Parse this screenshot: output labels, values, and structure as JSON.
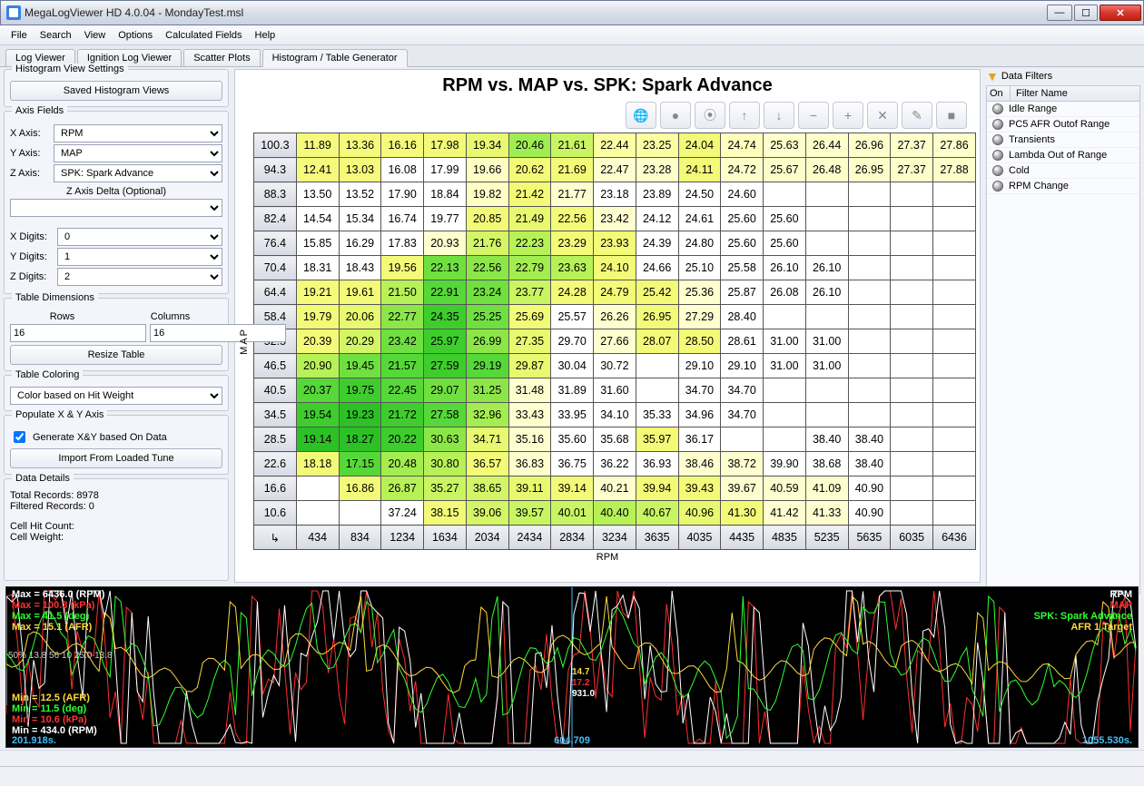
{
  "window": {
    "title": "MegaLogViewer HD 4.0.04 - MondayTest.msl"
  },
  "menu": [
    "File",
    "Search",
    "View",
    "Options",
    "Calculated Fields",
    "Help"
  ],
  "tabs": {
    "items": [
      "Log Viewer",
      "Ignition Log Viewer",
      "Scatter Plots",
      "Histogram / Table Generator"
    ],
    "active_index": 3
  },
  "sidebar": {
    "histogram_settings_title": "Histogram View Settings",
    "saved_views_btn": "Saved Histogram Views",
    "axis_fields_title": "Axis Fields",
    "x_axis_label": "X Axis:",
    "x_axis_value": "RPM",
    "y_axis_label": "Y Axis:",
    "y_axis_value": "MAP",
    "z_axis_label": "Z Axis:",
    "z_axis_value": "SPK: Spark Advance",
    "z_delta_label": "Z Axis Delta (Optional)",
    "z_delta_value": "",
    "x_digits_label": "X Digits:",
    "x_digits_value": "0",
    "y_digits_label": "Y Digits:",
    "y_digits_value": "1",
    "z_digits_label": "Z Digits:",
    "z_digits_value": "2",
    "table_dim_title": "Table Dimensions",
    "rows_label": "Rows",
    "cols_label": "Columns",
    "rows_value": "16",
    "cols_value": "16",
    "resize_btn": "Resize Table",
    "coloring_title": "Table Coloring",
    "coloring_value": "Color based on Hit Weight",
    "populate_title": "Populate X & Y Axis",
    "gen_checkbox_label": "Generate X&Y based On Data",
    "import_btn": "Import From Loaded Tune",
    "details_title": "Data Details",
    "total_records": "Total Records: 8978",
    "filtered_records": "Filtered Records: 0",
    "cell_hit": "Cell Hit Count:",
    "cell_weight": "Cell Weight:"
  },
  "chart": {
    "title": "RPM vs. MAP vs. SPK: Spark Advance",
    "y_axis_label": "MAP",
    "x_axis_label": "RPM",
    "toolbar_icons": [
      "globe-icon",
      "record-icon",
      "layers-icon",
      "arrow-up-icon",
      "arrow-down-icon",
      "minus-icon",
      "plus-icon",
      "close-icon",
      "edit-icon",
      "stop-icon"
    ],
    "y_headers": [
      "100.3",
      "94.3",
      "88.3",
      "82.4",
      "76.4",
      "70.4",
      "64.4",
      "58.4",
      "52.5",
      "46.5",
      "40.5",
      "34.5",
      "28.5",
      "22.6",
      "16.6",
      "10.6"
    ],
    "x_headers": [
      "434",
      "834",
      "1234",
      "1634",
      "2034",
      "2434",
      "2834",
      "3234",
      "3635",
      "4035",
      "4435",
      "4835",
      "5235",
      "5635",
      "6035",
      "6436"
    ],
    "cells": [
      [
        [
          "11.89",
          "#f5fa7c"
        ],
        [
          "13.36",
          "#f5fa7c"
        ],
        [
          "16.16",
          "#f5fa7c"
        ],
        [
          "17.98",
          "#f3fa78"
        ],
        [
          "19.34",
          "#e8f870"
        ],
        [
          "20.46",
          "#9fed52"
        ],
        [
          "21.61",
          "#c9f562"
        ],
        [
          "22.44",
          "#fcfea2"
        ],
        [
          "23.25",
          "#fcfea2"
        ],
        [
          "24.04",
          "#f2fa78"
        ],
        [
          "24.74",
          "#fefebc"
        ],
        [
          "25.63",
          "#fefecb"
        ],
        [
          "26.44",
          "#fefecb"
        ],
        [
          "26.96",
          "#fefecb"
        ],
        [
          "27.37",
          "#fefecb"
        ],
        [
          "27.86",
          "#fefecb"
        ]
      ],
      [
        [
          "12.41",
          "#f5fa7c"
        ],
        [
          "13.03",
          "#f5fa7c"
        ],
        [
          "16.08",
          "#ffffff"
        ],
        [
          "17.99",
          "#ffffff"
        ],
        [
          "19.66",
          "#fefec5"
        ],
        [
          "20.62",
          "#f3fa78"
        ],
        [
          "21.69",
          "#f3fa78"
        ],
        [
          "22.47",
          "#fefecf"
        ],
        [
          "23.28",
          "#fefecb"
        ],
        [
          "24.11",
          "#f2fa78"
        ],
        [
          "24.72",
          "#fefecb"
        ],
        [
          "25.67",
          "#fefecb"
        ],
        [
          "26.48",
          "#fefecb"
        ],
        [
          "26.95",
          "#fefecb"
        ],
        [
          "27.37",
          "#fefecb"
        ],
        [
          "27.88",
          "#fefecb"
        ]
      ],
      [
        [
          "13.50",
          "#ffffff"
        ],
        [
          "13.52",
          "#ffffff"
        ],
        [
          "17.90",
          "#ffffff"
        ],
        [
          "18.84",
          "#ffffff"
        ],
        [
          "19.82",
          "#fefec5"
        ],
        [
          "21.42",
          "#f3fa78"
        ],
        [
          "21.77",
          "#fefecf"
        ],
        [
          "23.18",
          "#ffffff"
        ],
        [
          "23.89",
          "#ffffff"
        ],
        [
          "24.50",
          "#ffffff"
        ],
        [
          "24.60",
          "#ffffff"
        ],
        [
          "",
          "#ffffff"
        ],
        [
          "",
          "#ffffff"
        ],
        [
          "",
          "#ffffff"
        ],
        [
          "",
          "#ffffff"
        ],
        [
          "",
          "#ffffff"
        ]
      ],
      [
        [
          "14.54",
          "#ffffff"
        ],
        [
          "15.34",
          "#ffffff"
        ],
        [
          "16.74",
          "#ffffff"
        ],
        [
          "19.77",
          "#ffffff"
        ],
        [
          "20.85",
          "#f3fa78"
        ],
        [
          "21.49",
          "#e8f870"
        ],
        [
          "22.56",
          "#f3fa78"
        ],
        [
          "23.42",
          "#fefecf"
        ],
        [
          "24.12",
          "#ffffff"
        ],
        [
          "24.61",
          "#ffffff"
        ],
        [
          "25.60",
          "#ffffff"
        ],
        [
          "25.60",
          "#ffffff"
        ],
        [
          "",
          "#ffffff"
        ],
        [
          "",
          "#ffffff"
        ],
        [
          "",
          "#ffffff"
        ],
        [
          "",
          "#ffffff"
        ]
      ],
      [
        [
          "15.85",
          "#ffffff"
        ],
        [
          "16.29",
          "#ffffff"
        ],
        [
          "17.83",
          "#ffffff"
        ],
        [
          "20.93",
          "#fefecf"
        ],
        [
          "21.76",
          "#d4f566"
        ],
        [
          "22.23",
          "#b7f158"
        ],
        [
          "23.29",
          "#f3fa78"
        ],
        [
          "23.93",
          "#f3fa78"
        ],
        [
          "24.39",
          "#ffffff"
        ],
        [
          "24.80",
          "#ffffff"
        ],
        [
          "25.60",
          "#ffffff"
        ],
        [
          "25.60",
          "#ffffff"
        ],
        [
          "",
          "#ffffff"
        ],
        [
          "",
          "#ffffff"
        ],
        [
          "",
          "#ffffff"
        ],
        [
          "",
          "#ffffff"
        ]
      ],
      [
        [
          "18.31",
          "#ffffff"
        ],
        [
          "18.43",
          "#ffffff"
        ],
        [
          "19.56",
          "#f3fa78"
        ],
        [
          "22.13",
          "#6fe040"
        ],
        [
          "22.56",
          "#8ce648"
        ],
        [
          "22.79",
          "#a3ed50"
        ],
        [
          "23.63",
          "#b7f158"
        ],
        [
          "24.10",
          "#f3fa78"
        ],
        [
          "24.66",
          "#ffffff"
        ],
        [
          "25.10",
          "#ffffff"
        ],
        [
          "25.58",
          "#ffffff"
        ],
        [
          "26.10",
          "#ffffff"
        ],
        [
          "26.10",
          "#ffffff"
        ],
        [
          "",
          "#ffffff"
        ],
        [
          "",
          "#ffffff"
        ],
        [
          "",
          "#ffffff"
        ]
      ],
      [
        [
          "19.21",
          "#f5fa7c"
        ],
        [
          "19.61",
          "#f3fa78"
        ],
        [
          "21.50",
          "#b7f158"
        ],
        [
          "22.91",
          "#55d838"
        ],
        [
          "23.24",
          "#6fe040"
        ],
        [
          "23.77",
          "#c9f562"
        ],
        [
          "24.28",
          "#f3fa78"
        ],
        [
          "24.79",
          "#f3fa78"
        ],
        [
          "25.42",
          "#f3fa78"
        ],
        [
          "25.36",
          "#fefecf"
        ],
        [
          "25.87",
          "#ffffff"
        ],
        [
          "26.08",
          "#ffffff"
        ],
        [
          "26.10",
          "#ffffff"
        ],
        [
          "",
          "#ffffff"
        ],
        [
          "",
          "#ffffff"
        ],
        [
          "",
          "#ffffff"
        ]
      ],
      [
        [
          "19.79",
          "#f3fa78"
        ],
        [
          "20.06",
          "#e8f870"
        ],
        [
          "22.77",
          "#8ce648"
        ],
        [
          "24.35",
          "#3ecd2d"
        ],
        [
          "25.25",
          "#6fe040"
        ],
        [
          "25.69",
          "#f3fa78"
        ],
        [
          "25.57",
          "#ffffff"
        ],
        [
          "26.26",
          "#fefecf"
        ],
        [
          "26.95",
          "#f3fa78"
        ],
        [
          "27.29",
          "#fefecf"
        ],
        [
          "28.40",
          "#ffffff"
        ],
        [
          "",
          "#ffffff"
        ],
        [
          "",
          "#ffffff"
        ],
        [
          "",
          "#ffffff"
        ],
        [
          "",
          "#ffffff"
        ],
        [
          "",
          "#ffffff"
        ]
      ],
      [
        [
          "20.39",
          "#f3fa78"
        ],
        [
          "20.29",
          "#d4f566"
        ],
        [
          "23.42",
          "#6fe040"
        ],
        [
          "25.97",
          "#3ecd2d"
        ],
        [
          "26.99",
          "#8ce648"
        ],
        [
          "27.35",
          "#e8f870"
        ],
        [
          "29.70",
          "#ffffff"
        ],
        [
          "27.66",
          "#fefecf"
        ],
        [
          "28.07",
          "#f3fa78"
        ],
        [
          "28.50",
          "#f3fa78"
        ],
        [
          "28.61",
          "#ffffff"
        ],
        [
          "31.00",
          "#ffffff"
        ],
        [
          "31.00",
          "#ffffff"
        ],
        [
          "",
          "#ffffff"
        ],
        [
          "",
          "#ffffff"
        ],
        [
          "",
          "#ffffff"
        ]
      ],
      [
        [
          "20.90",
          "#b7f158"
        ],
        [
          "19.45",
          "#6fe040"
        ],
        [
          "21.57",
          "#55d838"
        ],
        [
          "27.59",
          "#3ecd2d"
        ],
        [
          "29.19",
          "#55d838"
        ],
        [
          "29.87",
          "#e8f870"
        ],
        [
          "30.04",
          "#ffffff"
        ],
        [
          "30.72",
          "#ffffff"
        ],
        [
          "",
          "#ffffff"
        ],
        [
          "29.10",
          "#ffffff"
        ],
        [
          "29.10",
          "#ffffff"
        ],
        [
          "31.00",
          "#ffffff"
        ],
        [
          "31.00",
          "#ffffff"
        ],
        [
          "",
          "#ffffff"
        ],
        [
          "",
          "#ffffff"
        ],
        [
          "",
          "#ffffff"
        ]
      ],
      [
        [
          "20.37",
          "#55d838"
        ],
        [
          "19.75",
          "#3ecd2d"
        ],
        [
          "22.45",
          "#55d838"
        ],
        [
          "29.07",
          "#6fe040"
        ],
        [
          "31.25",
          "#8ce648"
        ],
        [
          "31.48",
          "#fefecf"
        ],
        [
          "31.89",
          "#ffffff"
        ],
        [
          "31.60",
          "#ffffff"
        ],
        [
          "",
          "#ffffff"
        ],
        [
          "34.70",
          "#ffffff"
        ],
        [
          "34.70",
          "#ffffff"
        ],
        [
          "",
          "#ffffff"
        ],
        [
          "",
          "#ffffff"
        ],
        [
          "",
          "#ffffff"
        ],
        [
          "",
          "#ffffff"
        ],
        [
          "",
          "#ffffff"
        ]
      ],
      [
        [
          "19.54",
          "#3ecd2d"
        ],
        [
          "19.23",
          "#2cc125"
        ],
        [
          "21.72",
          "#3ecd2d"
        ],
        [
          "27.58",
          "#55d838"
        ],
        [
          "32.96",
          "#a3ed50"
        ],
        [
          "33.43",
          "#fefecf"
        ],
        [
          "33.95",
          "#ffffff"
        ],
        [
          "34.10",
          "#ffffff"
        ],
        [
          "35.33",
          "#ffffff"
        ],
        [
          "34.96",
          "#ffffff"
        ],
        [
          "34.70",
          "#ffffff"
        ],
        [
          "",
          "#ffffff"
        ],
        [
          "",
          "#ffffff"
        ],
        [
          "",
          "#ffffff"
        ],
        [
          "",
          "#ffffff"
        ],
        [
          "",
          "#ffffff"
        ]
      ],
      [
        [
          "19.14",
          "#2cc125"
        ],
        [
          "18.27",
          "#2cc125"
        ],
        [
          "20.22",
          "#3ecd2d"
        ],
        [
          "30.63",
          "#8ce648"
        ],
        [
          "34.71",
          "#e8f870"
        ],
        [
          "35.16",
          "#fefecf"
        ],
        [
          "35.60",
          "#ffffff"
        ],
        [
          "35.68",
          "#ffffff"
        ],
        [
          "35.97",
          "#f3fa78"
        ],
        [
          "36.17",
          "#ffffff"
        ],
        [
          "",
          "#ffffff"
        ],
        [
          "",
          "#ffffff"
        ],
        [
          "38.40",
          "#ffffff"
        ],
        [
          "38.40",
          "#ffffff"
        ],
        [
          "",
          "#ffffff"
        ],
        [
          "",
          "#ffffff"
        ]
      ],
      [
        [
          "18.18",
          "#f3fa78"
        ],
        [
          "17.15",
          "#55d838"
        ],
        [
          "20.48",
          "#a3ed50"
        ],
        [
          "30.80",
          "#b7f158"
        ],
        [
          "36.57",
          "#f3fa78"
        ],
        [
          "36.83",
          "#fefecf"
        ],
        [
          "36.75",
          "#ffffff"
        ],
        [
          "36.22",
          "#ffffff"
        ],
        [
          "36.93",
          "#ffffff"
        ],
        [
          "38.46",
          "#fefecf"
        ],
        [
          "38.72",
          "#fefecf"
        ],
        [
          "39.90",
          "#ffffff"
        ],
        [
          "38.68",
          "#ffffff"
        ],
        [
          "38.40",
          "#ffffff"
        ],
        [
          "",
          "#ffffff"
        ],
        [
          "",
          "#ffffff"
        ]
      ],
      [
        [
          "",
          "#ffffff"
        ],
        [
          "16.86",
          "#f3fa78"
        ],
        [
          "26.87",
          "#b7f158"
        ],
        [
          "35.27",
          "#c9f562"
        ],
        [
          "38.65",
          "#d4f566"
        ],
        [
          "39.11",
          "#e8f870"
        ],
        [
          "39.14",
          "#f3fa78"
        ],
        [
          "40.21",
          "#fefecf"
        ],
        [
          "39.94",
          "#f3fa78"
        ],
        [
          "39.43",
          "#f3fa78"
        ],
        [
          "39.67",
          "#fefecf"
        ],
        [
          "40.59",
          "#fefecf"
        ],
        [
          "41.09",
          "#fefecf"
        ],
        [
          "40.90",
          "#ffffff"
        ],
        [
          "",
          "#ffffff"
        ],
        [
          "",
          "#ffffff"
        ]
      ],
      [
        [
          "",
          "#ffffff"
        ],
        [
          "",
          "#ffffff"
        ],
        [
          "37.24",
          "#ffffff"
        ],
        [
          "38.15",
          "#f3fa78"
        ],
        [
          "39.06",
          "#d4f566"
        ],
        [
          "39.57",
          "#c9f562"
        ],
        [
          "40.01",
          "#c9f562"
        ],
        [
          "40.40",
          "#b7f158"
        ],
        [
          "40.67",
          "#c9f562"
        ],
        [
          "40.96",
          "#e8f870"
        ],
        [
          "41.30",
          "#f3fa78"
        ],
        [
          "41.42",
          "#fefecf"
        ],
        [
          "41.33",
          "#fefecf"
        ],
        [
          "40.90",
          "#ffffff"
        ],
        [
          "",
          "#ffffff"
        ],
        [
          "",
          "#ffffff"
        ]
      ]
    ]
  },
  "filters": {
    "title": "Data Filters",
    "col_on": "On",
    "col_name": "Filter Name",
    "items": [
      "Idle Range",
      "PC5 AFR Outof Range",
      "Transients",
      "Lambda Out of Range",
      "Cold",
      "RPM Change"
    ]
  },
  "graph": {
    "max_rpm": "Max = 6436.0 (RPM)",
    "max_map": "Max = 100.3 (kPa)",
    "max_spk": "Max = 41.5 (deg)",
    "max_afr": "Max = 15.1 (AFR)",
    "mid_vals": "50%  13.8  56  10  25.0  13.8",
    "min_afr": "Min = 12.5 (AFR)",
    "min_spk": "Min = 11.5 (deg)",
    "min_map": "Min = 10.6 (kPa)",
    "min_rpm": "Min = 434.0 (RPM)",
    "t_start": "201.918s.",
    "t_mid": "604.709",
    "t_end": "1055.530s.",
    "mv1": "14.7",
    "mv2": "17.2",
    "mv3": "931.0",
    "legend_rpm": "RPM",
    "legend_map": "MAP",
    "legend_spk": "SPK: Spark Advance",
    "legend_afr": "AFR 1 Target",
    "colors": {
      "rpm": "#ffffff",
      "map": "#ff3030",
      "spk": "#30ff30",
      "afr": "#ffd940",
      "time": "#40c0ff"
    }
  }
}
